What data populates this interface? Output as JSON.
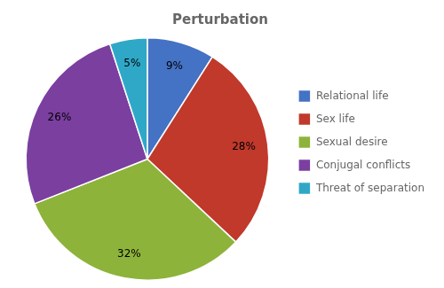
{
  "chart_data": {
    "type": "pie",
    "title": "Perturbation",
    "categories": [
      "Relational life",
      "Sex life",
      "Sexual desire",
      "Conjugal conflicts",
      "Threat of separation"
    ],
    "values": [
      9,
      28,
      32,
      26,
      5
    ],
    "value_labels": [
      "9%",
      "28%",
      "32%",
      "26%",
      "5%"
    ],
    "colors": [
      "#4472C4",
      "#C0392B",
      "#8DB33A",
      "#7B3FA0",
      "#2FA8C8"
    ],
    "data_labels": true,
    "legend": "right"
  }
}
